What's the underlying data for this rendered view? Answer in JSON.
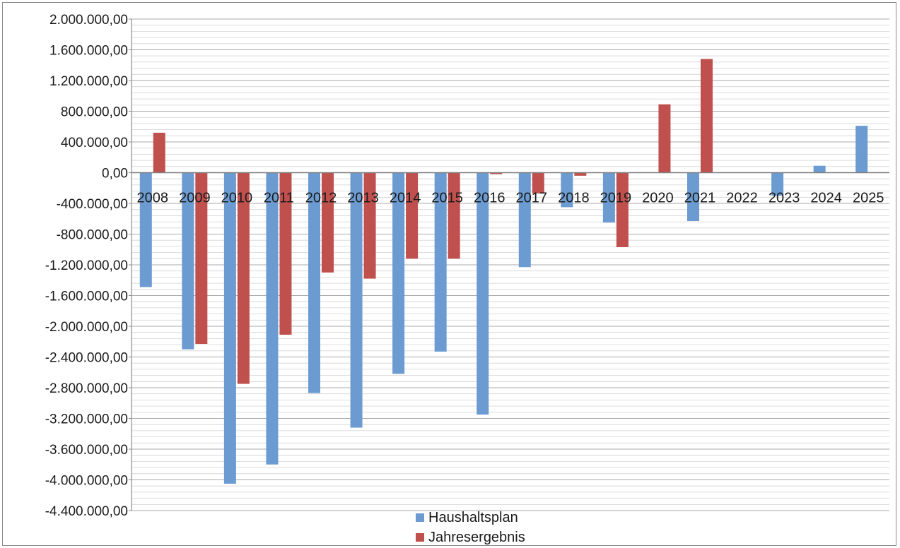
{
  "chart_data": {
    "type": "bar",
    "categories": [
      "2008",
      "2009",
      "2010",
      "2011",
      "2012",
      "2013",
      "2014",
      "2015",
      "2016",
      "2017",
      "2018",
      "2019",
      "2020",
      "2021",
      "2022",
      "2023",
      "2024",
      "2025"
    ],
    "series": [
      {
        "name": "Haushaltsplan",
        "color": "#6b9bd1",
        "values": [
          -1490000,
          -2300000,
          -4050000,
          -3800000,
          -2870000,
          -3320000,
          -2620000,
          -2330000,
          -3150000,
          -1230000,
          -450000,
          -650000,
          0,
          -630000,
          0,
          -300000,
          90000,
          610000
        ]
      },
      {
        "name": "Jahresergebnis",
        "color": "#c0504d",
        "values": [
          520000,
          -2230000,
          -2750000,
          -2110000,
          -1300000,
          -1380000,
          -1120000,
          -1120000,
          -20000,
          -270000,
          -40000,
          -970000,
          890000,
          1480000,
          0,
          0,
          0,
          0
        ]
      }
    ],
    "yticks": [
      "2.000.000,00",
      "1.600.000,00",
      "1.200.000,00",
      "800.000,00",
      "400.000,00",
      "0,00",
      "-400.000,00",
      "-800.000,00",
      "-1.200.000,00",
      "-1.600.000,00",
      "-2.000.000,00",
      "-2.400.000,00",
      "-2.800.000,00",
      "-3.200.000,00",
      "-3.600.000,00",
      "-4.000.000,00",
      "-4.400.000,00"
    ],
    "ylim": [
      -4400000,
      2000000
    ],
    "ystep": 400000,
    "grid": true,
    "legend": "bottom",
    "title": "",
    "xlabel": "",
    "ylabel": ""
  }
}
